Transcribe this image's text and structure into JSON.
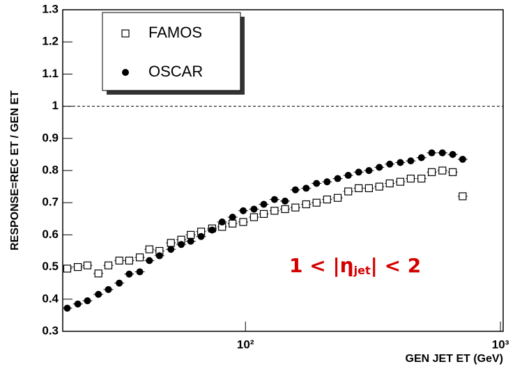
{
  "chart_data": {
    "type": "scatter",
    "x_label": "GEN JET ET (GeV)",
    "y_label": "RESPONSE=REC ET / GEN ET",
    "xlim": [
      19.2,
      1025
    ],
    "x_log": true,
    "xticks": [
      {
        "value": 100,
        "label": "10²"
      },
      {
        "value": 1000,
        "label": "10³"
      }
    ],
    "ylim": [
      0.3,
      1.3
    ],
    "yticks": [
      0.3,
      0.4,
      0.5,
      0.6,
      0.7,
      0.8,
      0.9,
      1,
      1.1,
      1.2,
      1.3
    ],
    "reference_line": 1,
    "annotation": {
      "before": "1 < |η",
      "sub": "jet",
      "after": "| < 2"
    },
    "series": [
      {
        "name": "FAMOS",
        "marker": "open-square",
        "color": "#000000",
        "x": [
          20,
          22,
          24,
          26.5,
          29,
          32,
          35,
          38.5,
          42,
          46,
          51,
          56,
          61,
          67,
          74,
          81,
          89,
          98,
          108,
          118,
          130,
          143,
          157,
          173,
          190,
          209,
          230,
          253,
          278,
          305,
          335,
          368,
          405,
          445,
          490,
          538,
          592,
          650,
          711
        ],
        "values": [
          0.495,
          0.5,
          0.505,
          0.48,
          0.505,
          0.52,
          0.52,
          0.53,
          0.555,
          0.55,
          0.575,
          0.585,
          0.6,
          0.61,
          0.62,
          0.625,
          0.635,
          0.64,
          0.655,
          0.665,
          0.675,
          0.68,
          0.685,
          0.695,
          0.7,
          0.71,
          0.715,
          0.735,
          0.745,
          0.745,
          0.75,
          0.76,
          0.765,
          0.775,
          0.775,
          0.795,
          0.8,
          0.795,
          0.72
        ]
      },
      {
        "name": "OSCAR",
        "marker": "filled-circle",
        "color": "#000000",
        "x": [
          20,
          22,
          24,
          26.5,
          29,
          32,
          35,
          38.5,
          42,
          46,
          51,
          56,
          61,
          67,
          74,
          81,
          89,
          98,
          108,
          118,
          130,
          143,
          157,
          173,
          190,
          209,
          230,
          253,
          278,
          305,
          335,
          368,
          405,
          445,
          490,
          538,
          592,
          650,
          711
        ],
        "values": [
          0.372,
          0.385,
          0.395,
          0.415,
          0.43,
          0.45,
          0.478,
          0.485,
          0.52,
          0.535,
          0.555,
          0.57,
          0.58,
          0.595,
          0.615,
          0.64,
          0.655,
          0.675,
          0.68,
          0.695,
          0.71,
          0.705,
          0.74,
          0.745,
          0.76,
          0.765,
          0.775,
          0.785,
          0.795,
          0.8,
          0.81,
          0.82,
          0.825,
          0.83,
          0.84,
          0.855,
          0.855,
          0.85,
          0.835
        ]
      }
    ]
  }
}
